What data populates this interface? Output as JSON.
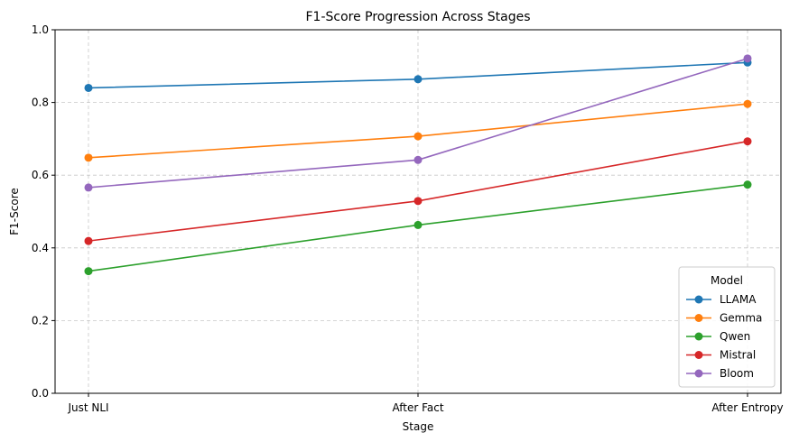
{
  "chart_data": {
    "type": "line",
    "title": "F1-Score Progression Across Stages",
    "xlabel": "Stage",
    "ylabel": "F1-Score",
    "categories": [
      "Just NLI",
      "After Fact",
      "After Entropy"
    ],
    "ylim": [
      0,
      1.0
    ],
    "yticks": [
      "0.0",
      "0.2",
      "0.4",
      "0.6",
      "0.8",
      "1.0"
    ],
    "grid": true,
    "legend": {
      "title": "Model",
      "placement": "lower-right"
    },
    "series": [
      {
        "name": "LLAMA",
        "color": "#1f77b4",
        "values": [
          0.84,
          0.864,
          0.91
        ]
      },
      {
        "name": "Gemma",
        "color": "#ff7f0e",
        "values": [
          0.648,
          0.707,
          0.796
        ]
      },
      {
        "name": "Qwen",
        "color": "#2ca02c",
        "values": [
          0.336,
          0.463,
          0.574
        ]
      },
      {
        "name": "Mistral",
        "color": "#d62728",
        "values": [
          0.419,
          0.529,
          0.693
        ]
      },
      {
        "name": "Bloom",
        "color": "#9467bd",
        "values": [
          0.566,
          0.642,
          0.921
        ]
      }
    ]
  }
}
